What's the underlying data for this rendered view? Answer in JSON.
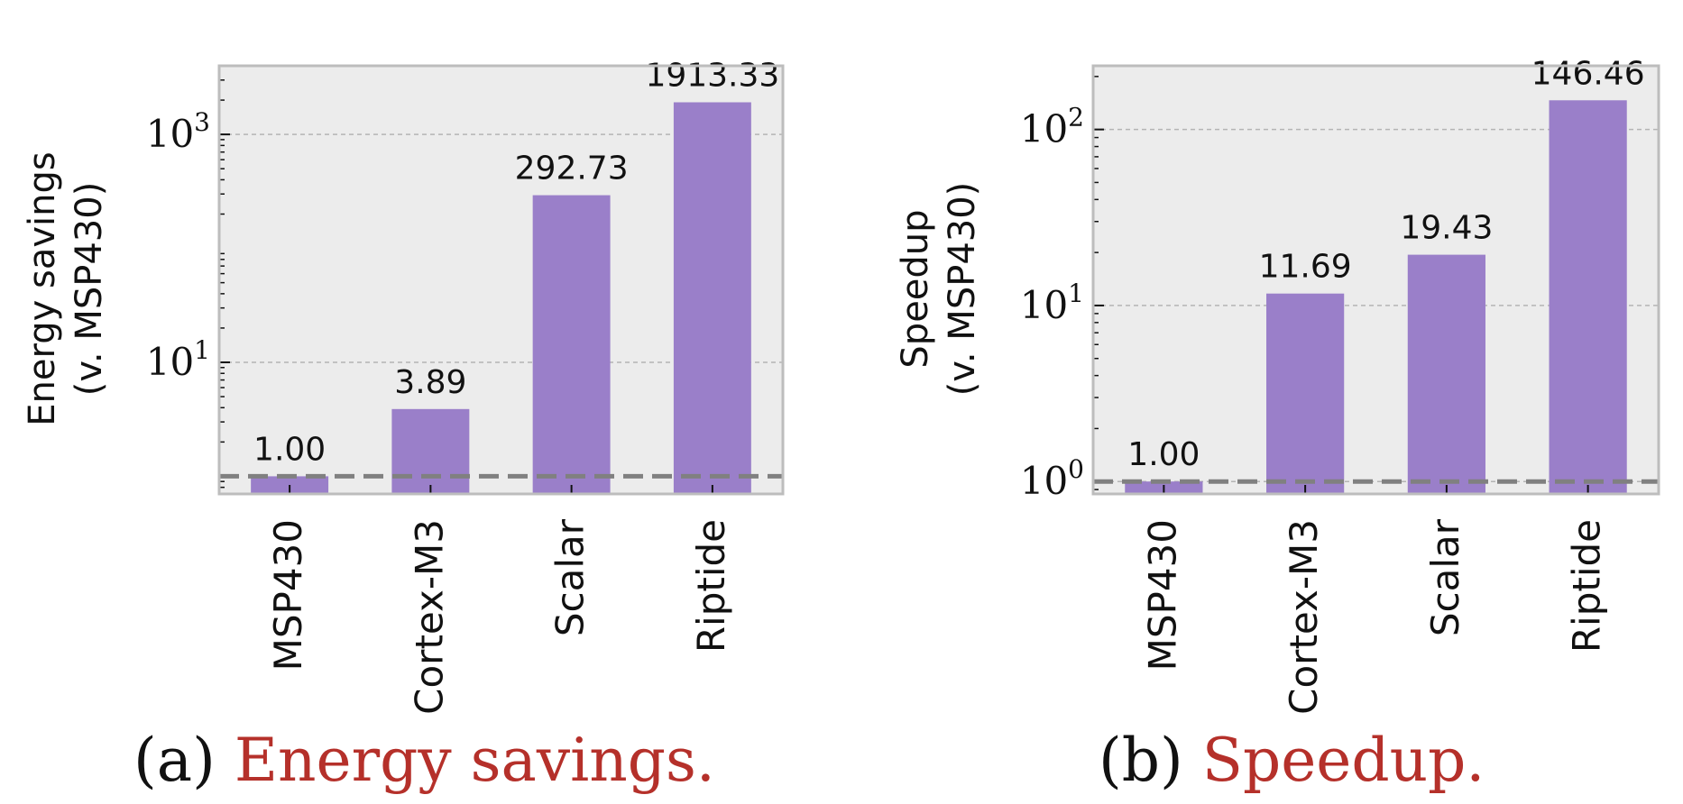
{
  "chart_data": [
    {
      "type": "bar",
      "panel_label": "(a)",
      "caption": "Energy savings.",
      "ylabel_line1": "Energy savings",
      "ylabel_line2": "(v. MSP430)",
      "yscale": "log",
      "ylim": [
        0.7,
        4000
      ],
      "yticks": [
        {
          "base": "10",
          "exp": "1",
          "value": 10
        },
        {
          "base": "10",
          "exp": "3",
          "value": 1000
        }
      ],
      "baseline": 1,
      "categories": [
        "MSP430",
        "Cortex-M3",
        "Scalar",
        "Riptide"
      ],
      "values": [
        1.0,
        3.89,
        292.73,
        1913.33
      ],
      "value_labels": [
        "1.00",
        "3.89",
        "292.73",
        "1913.33"
      ],
      "grid": true,
      "bar_color": "#9a7fc9",
      "plot_bg": "#ececec"
    },
    {
      "type": "bar",
      "panel_label": "(b)",
      "caption": "Speedup.",
      "ylabel_line1": "Speedup",
      "ylabel_line2": "(v. MSP430)",
      "yscale": "log",
      "ylim": [
        0.85,
        230
      ],
      "yticks": [
        {
          "base": "10",
          "exp": "0",
          "value": 1
        },
        {
          "base": "10",
          "exp": "1",
          "value": 10
        },
        {
          "base": "10",
          "exp": "2",
          "value": 100
        }
      ],
      "baseline": 1,
      "categories": [
        "MSP430",
        "Cortex-M3",
        "Scalar",
        "Riptide"
      ],
      "values": [
        1.0,
        11.69,
        19.43,
        146.46
      ],
      "value_labels": [
        "1.00",
        "11.69",
        "19.43",
        "146.46"
      ],
      "grid": true,
      "bar_color": "#9a7fc9",
      "plot_bg": "#ececec"
    }
  ],
  "colors": {
    "caption_accent": "#b5302a",
    "caption_text": "#111111",
    "baseline_line": "#808080",
    "grid_line": "#b4b4b4",
    "axes_border": "#bdbdbd",
    "text": "#111111"
  }
}
